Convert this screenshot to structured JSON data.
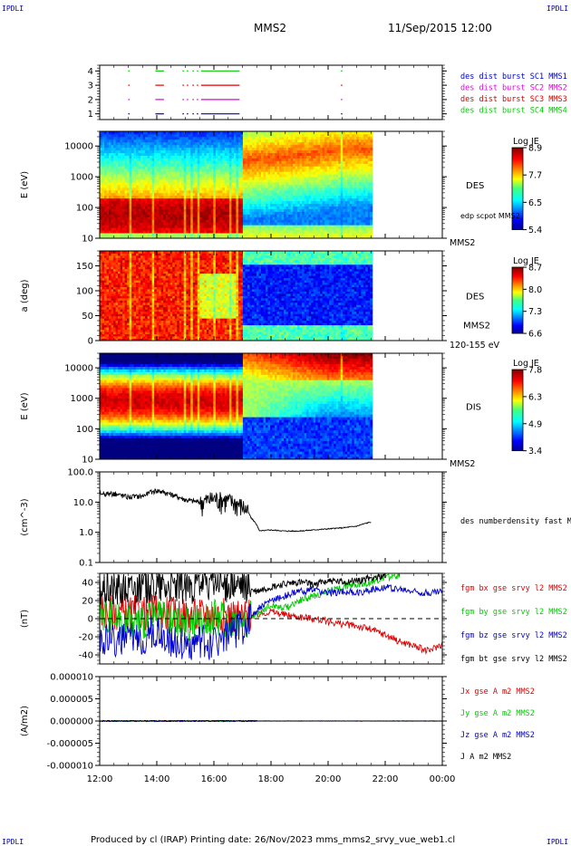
{
  "header": {
    "corner_left": "IPDLI",
    "corner_right": "IPDLI",
    "title": "MMS2",
    "datetime": "11/Sep/2015 12:00"
  },
  "footer": {
    "text": "Produced by cl (IRAP)   Printing date: 26/Nov/2023   mms_mms2_srvy_vue_web1.cl",
    "corner_left": "IPDLI",
    "corner_right": "IPDLI"
  },
  "colors": {
    "mms1": "#0000cc",
    "mms2": "#dd00dd",
    "mms3": "#dd0000",
    "mms4": "#00cc00",
    "bx": "#dd0000",
    "by": "#00cc00",
    "bz": "#0000cc",
    "bt": "#000000"
  },
  "chart_data": [
    {
      "id": "burst",
      "type": "scatter",
      "ylim": [
        0.6,
        4.4
      ],
      "yticks": [
        "1",
        "2",
        "3",
        "4"
      ],
      "legend": [
        {
          "label": "des dist burst SC1 MMS1",
          "color": "#0000cc"
        },
        {
          "label": "des dist burst SC2 MMS2",
          "color": "#dd00dd"
        },
        {
          "label": "des dist burst SC3 MMS3",
          "color": "#dd0000"
        },
        {
          "label": "des dist burst SC4 MMS4",
          "color": "#00cc00"
        }
      ],
      "segments": [
        [
          13.0,
          13.05
        ],
        [
          13.95,
          14.25
        ],
        [
          14.9,
          14.95
        ],
        [
          15.05,
          15.1
        ],
        [
          15.25,
          15.3
        ],
        [
          15.4,
          15.45
        ],
        [
          15.55,
          16.9
        ],
        [
          20.45,
          20.5
        ]
      ]
    },
    {
      "id": "des-energy",
      "type": "heatmap",
      "ylabel": "E (eV)",
      "ylog": true,
      "ylim": [
        10,
        30000
      ],
      "yticks": [
        "10",
        "100",
        "1000",
        "10000"
      ],
      "side_label": "DES",
      "side_label2": "edp scpot MMS2",
      "under_label": "MMS2",
      "colorbar": {
        "title": "Log JE",
        "ticks": [
          "8.9",
          "7.7",
          "6.5",
          "5.4"
        ]
      }
    },
    {
      "id": "des-pitch",
      "type": "heatmap",
      "ylabel": "a (deg)",
      "ylim": [
        0,
        180
      ],
      "yticks": [
        "0",
        "50",
        "100",
        "150"
      ],
      "side_label": "DES",
      "side_label2": "MMS2",
      "under_label": "120-155 eV",
      "colorbar": {
        "title": "Log JE",
        "ticks": [
          "8.7",
          "8.0",
          "7.3",
          "6.6"
        ]
      }
    },
    {
      "id": "dis-energy",
      "type": "heatmap",
      "ylabel": "E (eV)",
      "ylog": true,
      "ylim": [
        10,
        30000
      ],
      "yticks": [
        "10",
        "100",
        "1000",
        "10000"
      ],
      "side_label": "DIS",
      "under_label": "MMS2",
      "colorbar": {
        "title": "Log JE",
        "ticks": [
          "7.8",
          "6.3",
          "4.9",
          "3.4"
        ]
      }
    },
    {
      "id": "density",
      "type": "line",
      "ylabel": "(cm^-3)",
      "ylog": true,
      "ylim": [
        0.1,
        100
      ],
      "yticks": [
        "0.1",
        "1.0",
        "10.0",
        "100.0"
      ],
      "series": [
        {
          "name": "des numberdensity fast M",
          "color": "#000000",
          "x": [
            12.0,
            12.5,
            13.0,
            13.5,
            14.0,
            14.5,
            15.0,
            15.5,
            16.0,
            16.5,
            17.0,
            17.3,
            17.6,
            18.0,
            18.5,
            19.0,
            19.5,
            20.0,
            20.5,
            21.0,
            21.5
          ],
          "y": [
            20,
            19,
            15,
            16,
            25,
            18,
            12,
            10,
            14,
            12,
            8,
            3,
            1.1,
            1.2,
            1.1,
            1.1,
            1.2,
            1.3,
            1.4,
            1.6,
            2.2
          ]
        }
      ]
    },
    {
      "id": "bfield",
      "type": "line",
      "ylabel": "(nT)",
      "ylim": [
        -50,
        50
      ],
      "yticks": [
        "-40",
        "-20",
        "0",
        "20",
        "40"
      ],
      "series": [
        {
          "name": "fgm bx gse srvy l2 MMS2",
          "color": "#dd0000",
          "x": [
            12,
            13,
            14,
            15,
            16,
            17,
            17.5,
            18,
            18.5,
            19,
            19.5,
            20,
            20.5,
            21,
            21.5,
            22,
            22.5,
            23,
            23.5,
            24
          ],
          "y": [
            10,
            5,
            8,
            3,
            5,
            2,
            4,
            8,
            4,
            2,
            0,
            -3,
            -6,
            -8,
            -12,
            -18,
            -25,
            -30,
            -36,
            -28
          ]
        },
        {
          "name": "fgm by gse srvy l2 MMS2",
          "color": "#00cc00",
          "x": [
            12,
            13,
            14,
            15,
            16,
            17,
            17.5,
            18,
            18.5,
            19,
            19.5,
            20,
            20.5,
            21,
            21.5,
            22,
            22.5
          ],
          "y": [
            5,
            -5,
            0,
            -8,
            2,
            -5,
            5,
            15,
            12,
            20,
            25,
            30,
            35,
            38,
            40,
            45,
            48
          ]
        },
        {
          "name": "fgm bz gse srvy l2 MMS2",
          "color": "#0000cc",
          "x": [
            12,
            13,
            14,
            15,
            16,
            17,
            17.5,
            18,
            18.5,
            19,
            19.5,
            20,
            20.5,
            21,
            21.5,
            22,
            22.5,
            23,
            23.5,
            24
          ],
          "y": [
            -20,
            -25,
            -15,
            -30,
            -25,
            -10,
            10,
            20,
            25,
            30,
            32,
            28,
            30,
            28,
            32,
            35,
            32,
            30,
            28,
            30
          ]
        },
        {
          "name": "fgm bt gse srvy l2 MMS2",
          "color": "#000000",
          "x": [
            12,
            13,
            14,
            15,
            16,
            17,
            17.5,
            18,
            18.5,
            19,
            19.5,
            20,
            20.5,
            21,
            21.5,
            22
          ],
          "y": [
            35,
            35,
            38,
            35,
            40,
            35,
            30,
            35,
            38,
            40,
            38,
            42,
            40,
            42,
            45,
            48
          ]
        }
      ]
    },
    {
      "id": "current",
      "type": "line",
      "ylabel": "(A/m2)",
      "ylim": [
        -1e-05,
        1e-05
      ],
      "yticks": [
        "-0.000010",
        "-0.000005",
        "0.000000",
        "0.000005",
        "0.000010"
      ],
      "series": [
        {
          "name": "Jx gse A m2 MMS2",
          "color": "#dd0000",
          "x": [
            12,
            24
          ],
          "y": [
            0,
            0
          ]
        },
        {
          "name": "Jy gse A m2 MMS2",
          "color": "#00cc00",
          "x": [
            12,
            24
          ],
          "y": [
            0,
            0
          ]
        },
        {
          "name": "Jz gse A m2 MMS2",
          "color": "#0000cc",
          "x": [
            12,
            24
          ],
          "y": [
            0,
            0
          ]
        },
        {
          "name": "J A m2 MMS2",
          "color": "#000000",
          "x": [
            12,
            24
          ],
          "y": [
            0,
            0
          ]
        }
      ]
    }
  ],
  "xaxis": {
    "range": [
      12,
      24
    ],
    "ticks": [
      "12:00",
      "14:00",
      "16:00",
      "18:00",
      "20:00",
      "22:00",
      "00:00"
    ]
  }
}
